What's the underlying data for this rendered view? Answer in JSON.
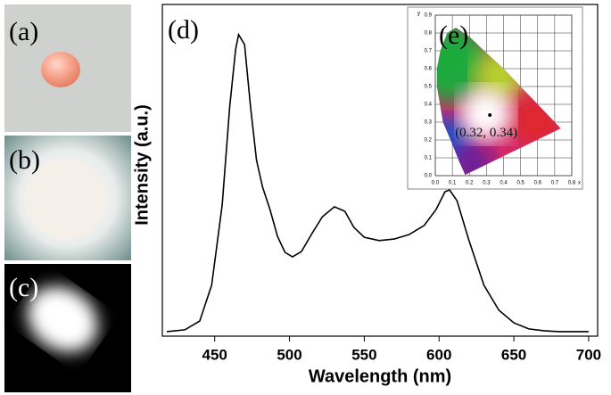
{
  "photos": [
    {
      "label": "(a)"
    },
    {
      "label": "(b)"
    },
    {
      "label": "(c)"
    }
  ],
  "chart_data": [
    {
      "type": "line",
      "panel_label": "(d)",
      "xlabel": "Wavelength (nm)",
      "ylabel": "Intensity (a.u.)",
      "color": "#000000",
      "x": [
        418,
        430,
        440,
        448,
        455,
        460,
        464,
        466,
        470,
        474,
        478,
        482,
        487,
        492,
        497,
        502,
        508,
        515,
        522,
        530,
        537,
        543,
        550,
        560,
        570,
        580,
        590,
        598,
        604,
        607,
        612,
        620,
        630,
        640,
        650,
        660,
        670,
        680,
        690,
        700
      ],
      "values": [
        0.015,
        0.021,
        0.05,
        0.169,
        0.435,
        0.76,
        0.952,
        1.0,
        0.967,
        0.76,
        0.583,
        0.494,
        0.42,
        0.331,
        0.278,
        0.263,
        0.281,
        0.34,
        0.396,
        0.429,
        0.414,
        0.361,
        0.328,
        0.317,
        0.322,
        0.337,
        0.367,
        0.42,
        0.479,
        0.485,
        0.449,
        0.317,
        0.169,
        0.086,
        0.044,
        0.024,
        0.018,
        0.015,
        0.015,
        0.015
      ],
      "xlim": [
        415,
        706
      ],
      "ylim": [
        0,
        1.1
      ],
      "xticks": [
        450,
        500,
        550,
        600,
        650,
        700
      ]
    },
    {
      "type": "scatter",
      "panel_label": "(e)",
      "xlabel": "x",
      "ylabel": "y",
      "color": "#000000",
      "grid": true,
      "x": [
        0.32
      ],
      "values": [
        0.34
      ],
      "annotation": "(0.32, 0.34)",
      "xlim": [
        0,
        0.8
      ],
      "ylim": [
        0,
        0.9
      ],
      "xticks": [
        {
          "value": 0,
          "label": "0.0"
        },
        0.1,
        0.2,
        0.3,
        0.4,
        0.5,
        0.6,
        0.7,
        0.8
      ],
      "yticks": [
        {
          "value": 0,
          "label": "0.0"
        },
        0.1,
        0.2,
        0.3,
        0.4,
        0.5,
        0.6,
        0.7,
        0.8,
        0.9
      ]
    }
  ]
}
